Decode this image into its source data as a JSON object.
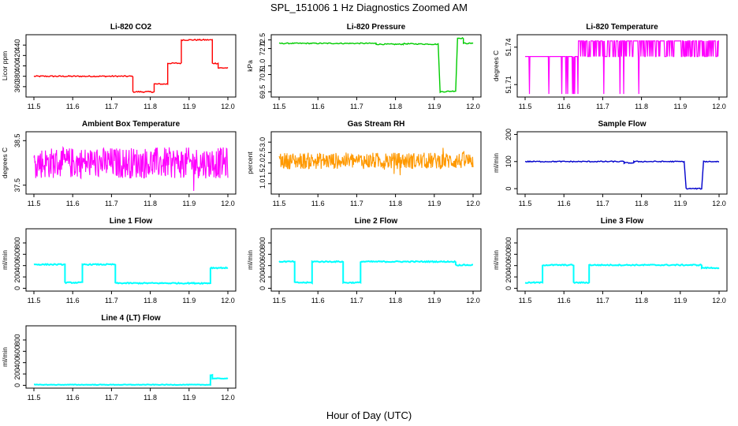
{
  "figure": {
    "title": "SPL_151006  1 Hz Diagnostics Zoomed AM",
    "xlabel": "Hour of Day (UTC)"
  },
  "chart_data": [
    {
      "type": "line",
      "title": "Li-820 CO2",
      "ylabel": "Licor ppm",
      "color": "#ff0000",
      "xlim": [
        11.5,
        12.0
      ],
      "ylim": [
        340,
        460
      ],
      "xticks": [
        "11.5",
        "11.6",
        "11.7",
        "11.8",
        "11.9",
        "12.0"
      ],
      "yticks": [
        360,
        380,
        400,
        420,
        440
      ],
      "segments": [
        {
          "x": [
            11.5,
            11.755
          ],
          "y": [
            380,
            380
          ]
        },
        {
          "x": [
            11.755,
            11.81
          ],
          "y": [
            350,
            350
          ]
        },
        {
          "x": [
            11.81,
            11.845
          ],
          "y": [
            365,
            365
          ]
        },
        {
          "x": [
            11.845,
            11.88
          ],
          "y": [
            405,
            405
          ]
        },
        {
          "x": [
            11.88,
            11.96
          ],
          "y": [
            450,
            450
          ]
        },
        {
          "x": [
            11.96,
            11.975
          ],
          "y": [
            405,
            405
          ]
        },
        {
          "x": [
            11.975,
            12.0
          ],
          "y": [
            396,
            396
          ]
        }
      ],
      "noise": 1.2
    },
    {
      "type": "line",
      "title": "Li-820 Pressure",
      "ylabel": "kPa",
      "color": "#00cc00",
      "xlim": [
        11.5,
        12.0
      ],
      "ylim": [
        69.2,
        72.8
      ],
      "xticks": [
        "11.5",
        "11.6",
        "11.7",
        "11.8",
        "11.9",
        "12.0"
      ],
      "yticks": [
        "69.5",
        "70.5",
        "71.0",
        "72.0",
        "72.5"
      ],
      "ytick_values": [
        69.5,
        70.5,
        71.0,
        72.0,
        72.5
      ],
      "segments": [
        {
          "x": [
            11.5,
            11.75
          ],
          "y": [
            72.3,
            72.3
          ]
        },
        {
          "x": [
            11.75,
            11.82
          ],
          "y": [
            72.25,
            72.25
          ]
        },
        {
          "x": [
            11.82,
            11.91
          ],
          "y": [
            72.28,
            72.25
          ]
        },
        {
          "x": [
            11.915,
            11.955
          ],
          "y": [
            69.5,
            69.55
          ]
        },
        {
          "x": [
            11.96,
            11.975
          ],
          "y": [
            72.6,
            72.6
          ]
        },
        {
          "x": [
            11.975,
            12.0
          ],
          "y": [
            72.3,
            72.3
          ]
        }
      ],
      "noise": 0.03
    },
    {
      "type": "step",
      "title": "Li-820 Temperature",
      "ylabel": "degrees C",
      "color": "#ff00ff",
      "xlim": [
        11.5,
        12.0
      ],
      "ylim": [
        51.7,
        51.75
      ],
      "xticks": [
        "11.5",
        "11.6",
        "11.7",
        "11.8",
        "11.9",
        "12.0"
      ],
      "yticks": [
        "51.71",
        "51.74"
      ],
      "ytick_values": [
        51.71,
        51.74
      ],
      "levels": [
        51.7325,
        51.745
      ],
      "low_level": 51.7025,
      "switch_x": 11.635
    },
    {
      "type": "noise-band",
      "title": "Ambient Box Temperature",
      "ylabel": "degrees C",
      "color": "#ff00ff",
      "xlim": [
        11.5,
        12.0
      ],
      "ylim": [
        37.3,
        38.7
      ],
      "xticks": [
        "11.5",
        "11.6",
        "11.7",
        "11.8",
        "11.9",
        "12.0"
      ],
      "yticks": [
        "37.5",
        "38.5"
      ],
      "ytick_values": [
        37.5,
        38.5
      ],
      "center": 38.0,
      "spread": 0.35
    },
    {
      "type": "noise-band",
      "title": "Gas Stream RH",
      "ylabel": "percent",
      "color": "#ff9900",
      "xlim": [
        11.5,
        12.0
      ],
      "ylim": [
        0.5,
        3.5
      ],
      "xticks": [
        "11.5",
        "11.6",
        "11.7",
        "11.8",
        "11.9",
        "12.0"
      ],
      "yticks": [
        "1.0",
        "1.5",
        "2.0",
        "2.5",
        "3.0"
      ],
      "ytick_values": [
        1.0,
        1.5,
        2.0,
        2.5,
        3.0
      ],
      "center": 2.1,
      "spread": 0.4
    },
    {
      "type": "line",
      "title": "Sample Flow",
      "ylabel": "ml/min",
      "color": "#0000cc",
      "xlim": [
        11.5,
        12.0
      ],
      "ylim": [
        -20,
        210
      ],
      "xticks": [
        "11.5",
        "11.6",
        "11.7",
        "11.8",
        "11.9",
        "12.0"
      ],
      "yticks": [
        0,
        100,
        200
      ],
      "segments": [
        {
          "x": [
            11.5,
            11.755
          ],
          "y": [
            100,
            100
          ]
        },
        {
          "x": [
            11.755,
            11.78
          ],
          "y": [
            95,
            95
          ]
        },
        {
          "x": [
            11.78,
            11.91
          ],
          "y": [
            100,
            100
          ]
        },
        {
          "x": [
            11.915,
            11.955
          ],
          "y": [
            0,
            0
          ]
        },
        {
          "x": [
            11.96,
            12.0
          ],
          "y": [
            100,
            100
          ]
        }
      ],
      "noise": 2
    },
    {
      "type": "line",
      "title": "Line 1 Flow",
      "ylabel": "ml/min",
      "color": "#00ffff",
      "xlim": [
        11.5,
        12.0
      ],
      "ylim": [
        -50,
        1050
      ],
      "xticks": [
        "11.5",
        "11.6",
        "11.7",
        "11.8",
        "11.9",
        "12.0"
      ],
      "yticks": [
        0,
        200,
        400,
        600,
        800
      ],
      "segments": [
        {
          "x": [
            11.5,
            11.58
          ],
          "y": [
            420,
            420
          ]
        },
        {
          "x": [
            11.58,
            11.625
          ],
          "y": [
            100,
            100
          ]
        },
        {
          "x": [
            11.625,
            11.71
          ],
          "y": [
            420,
            420
          ]
        },
        {
          "x": [
            11.71,
            11.955
          ],
          "y": [
            90,
            90
          ]
        },
        {
          "x": [
            11.955,
            12.0
          ],
          "y": [
            360,
            360
          ]
        }
      ],
      "noise": 10
    },
    {
      "type": "line",
      "title": "Line 2 Flow",
      "ylabel": "ml/min",
      "color": "#00ffff",
      "xlim": [
        11.5,
        12.0
      ],
      "ylim": [
        -50,
        1050
      ],
      "xticks": [
        "11.5",
        "11.6",
        "11.7",
        "11.8",
        "11.9",
        "12.0"
      ],
      "yticks": [
        0,
        200,
        400,
        600,
        800
      ],
      "segments": [
        {
          "x": [
            11.5,
            11.54
          ],
          "y": [
            470,
            470
          ]
        },
        {
          "x": [
            11.54,
            11.585
          ],
          "y": [
            100,
            100
          ]
        },
        {
          "x": [
            11.585,
            11.665
          ],
          "y": [
            470,
            470
          ]
        },
        {
          "x": [
            11.665,
            11.71
          ],
          "y": [
            100,
            100
          ]
        },
        {
          "x": [
            11.71,
            11.955
          ],
          "y": [
            470,
            470
          ]
        },
        {
          "x": [
            11.955,
            12.0
          ],
          "y": [
            410,
            410
          ]
        }
      ],
      "noise": 10
    },
    {
      "type": "line",
      "title": "Line 3 Flow",
      "ylabel": "ml/min",
      "color": "#00ffff",
      "xlim": [
        11.5,
        12.0
      ],
      "ylim": [
        -50,
        1050
      ],
      "xticks": [
        "11.5",
        "11.6",
        "11.7",
        "11.8",
        "11.9",
        "12.0"
      ],
      "yticks": [
        0,
        200,
        400,
        600,
        800
      ],
      "segments": [
        {
          "x": [
            11.5,
            11.545
          ],
          "y": [
            100,
            100
          ]
        },
        {
          "x": [
            11.545,
            11.625
          ],
          "y": [
            410,
            410
          ]
        },
        {
          "x": [
            11.625,
            11.665
          ],
          "y": [
            100,
            100
          ]
        },
        {
          "x": [
            11.665,
            11.955
          ],
          "y": [
            410,
            410
          ]
        },
        {
          "x": [
            11.955,
            12.0
          ],
          "y": [
            360,
            360
          ]
        }
      ],
      "noise": 10
    },
    {
      "type": "line",
      "title": "Line 4 (LT) Flow",
      "ylabel": "ml/min",
      "color": "#00ffff",
      "xlim": [
        11.5,
        12.0
      ],
      "ylim": [
        -50,
        1050
      ],
      "xticks": [
        "11.5",
        "11.6",
        "11.7",
        "11.8",
        "11.9",
        "12.0"
      ],
      "yticks": [
        0,
        200,
        400,
        600,
        800
      ],
      "segments": [
        {
          "x": [
            11.5,
            11.955
          ],
          "y": [
            10,
            10
          ]
        },
        {
          "x": [
            11.955,
            11.96
          ],
          "y": [
            180,
            180
          ]
        },
        {
          "x": [
            11.96,
            12.0
          ],
          "y": [
            120,
            120
          ]
        }
      ],
      "noise": 5
    }
  ]
}
